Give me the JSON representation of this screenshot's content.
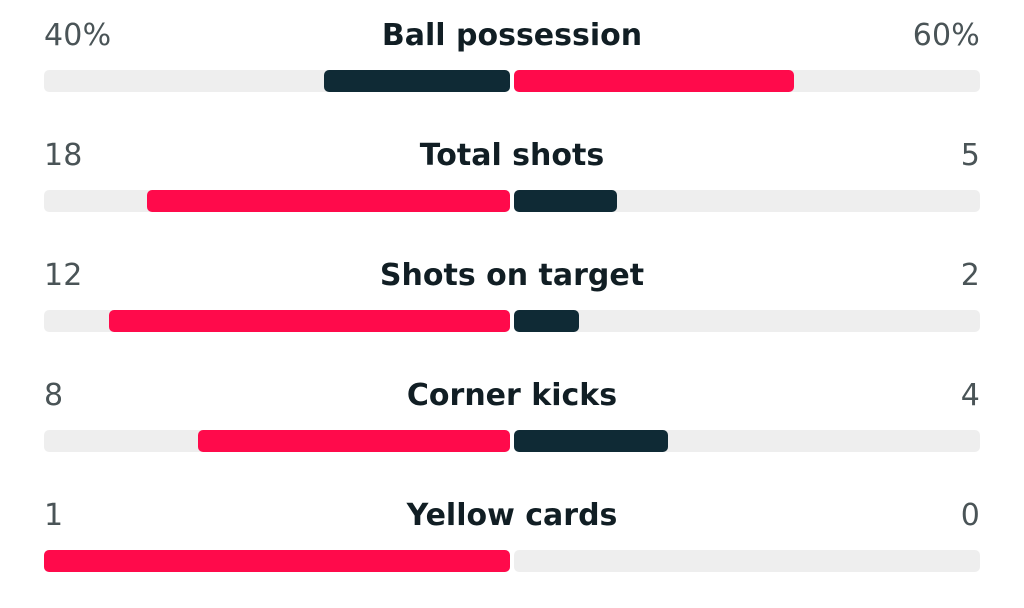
{
  "chart_data": {
    "type": "bar",
    "categories": [
      "Ball possession",
      "Total shots",
      "Shots on target",
      "Corner kicks",
      "Yellow cards"
    ],
    "series": [
      {
        "values": [
          40,
          18,
          12,
          8,
          1
        ],
        "labels": [
          "40%",
          "18",
          "12",
          "8",
          "1"
        ]
      },
      {
        "values": [
          60,
          5,
          2,
          4,
          0
        ],
        "labels": [
          "60%",
          "5",
          "2",
          "4",
          "0"
        ]
      }
    ],
    "bar_fraction": [
      [
        0.4,
        0.6
      ],
      [
        0.78,
        0.22
      ],
      [
        0.86,
        0.14
      ],
      [
        0.67,
        0.33
      ],
      [
        1.0,
        0.0
      ]
    ],
    "colors": {
      "leading": "#ff0a4b",
      "trailing": "#0f2a35",
      "track": "#eeeeee"
    }
  }
}
